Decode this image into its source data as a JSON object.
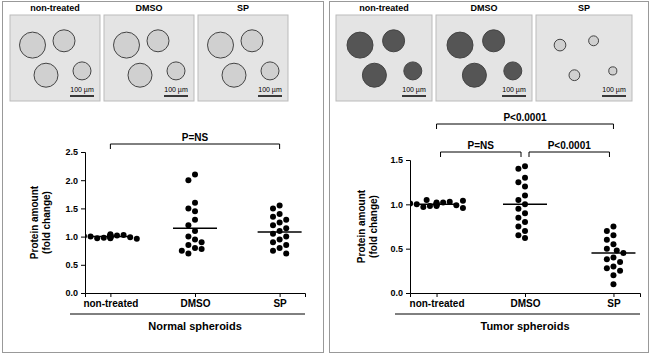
{
  "chart_data": [
    {
      "type": "scatter",
      "images": {
        "labels": [
          "non-treated",
          "DMSO",
          "SP"
        ],
        "scale_bar": "100 µm"
      },
      "categories": [
        "non-treated",
        "DMSO",
        "SP"
      ],
      "values": [
        [
          1.0,
          0.98,
          1.02,
          0.97,
          1.03,
          1.0,
          0.99,
          1.01,
          0.96,
          1.04,
          1.0,
          0.98,
          1.02,
          0.97,
          1.01,
          0.99,
          1.0,
          1.03
        ],
        [
          2.1,
          2.0,
          1.6,
          1.5,
          1.45,
          1.3,
          1.2,
          1.1,
          1.0,
          0.95,
          0.9,
          0.85,
          0.8,
          0.78,
          0.75,
          0.7
        ],
        [
          1.55,
          1.5,
          1.4,
          1.35,
          1.3,
          1.25,
          1.2,
          1.15,
          1.1,
          1.05,
          1.0,
          0.95,
          0.9,
          0.85,
          0.8,
          0.75,
          0.7
        ]
      ],
      "means": [
        1.0,
        1.15,
        1.08
      ],
      "color": "#000000",
      "ylim": [
        0,
        2.5
      ],
      "yticks": [
        {
          "value": 0,
          "label": "0.0"
        },
        {
          "value": 0.5,
          "label": "0.5"
        },
        {
          "value": 1,
          "label": "1.0"
        },
        {
          "value": 1.5,
          "label": "1.5"
        },
        {
          "value": 2,
          "label": "2.0"
        },
        {
          "value": 2.5,
          "label": "2.5"
        }
      ],
      "ylabel": [
        "Protein amount",
        "(fold change)"
      ],
      "xlabel": "Normal spheroids",
      "annotations": [
        {
          "between": [
            "non-treated",
            "SP"
          ],
          "label": "P=NS"
        }
      ]
    },
    {
      "type": "scatter",
      "images": {
        "labels": [
          "non-treated",
          "DMSO",
          "SP"
        ],
        "scale_bar": "100 µm"
      },
      "categories": [
        "non-treated",
        "DMSO",
        "SP"
      ],
      "values": [
        [
          1.0,
          0.98,
          1.02,
          0.97,
          1.03,
          1.0,
          0.99,
          1.01,
          0.96,
          1.04,
          1.0,
          0.98,
          1.02,
          0.99,
          1.01,
          1.05
        ],
        [
          1.43,
          1.4,
          1.3,
          1.25,
          1.2,
          1.1,
          1.05,
          1.0,
          0.95,
          0.9,
          0.85,
          0.8,
          0.75,
          0.7,
          0.65,
          0.62
        ],
        [
          0.75,
          0.7,
          0.65,
          0.6,
          0.55,
          0.5,
          0.48,
          0.45,
          0.4,
          0.38,
          0.35,
          0.3,
          0.28,
          0.25,
          0.2,
          0.1
        ]
      ],
      "means": [
        1.0,
        1.0,
        0.45
      ],
      "color": "#000000",
      "ylim": [
        0,
        1.5
      ],
      "yticks": [
        {
          "value": 0,
          "label": "0.0"
        },
        {
          "value": 0.5,
          "label": "0.5"
        },
        {
          "value": 1,
          "label": "1.0"
        },
        {
          "value": 1.5,
          "label": "1.5"
        }
      ],
      "ylabel": [
        "Protein amount",
        "(fold change)"
      ],
      "xlabel": "Tumor spheroids",
      "annotations": [
        {
          "between": [
            "non-treated",
            "SP"
          ],
          "label": "P<0.0001"
        },
        {
          "between": [
            "non-treated",
            "DMSO"
          ],
          "label": "P=NS"
        },
        {
          "between": [
            "DMSO",
            "SP"
          ],
          "label": "P<0.0001"
        }
      ]
    }
  ]
}
